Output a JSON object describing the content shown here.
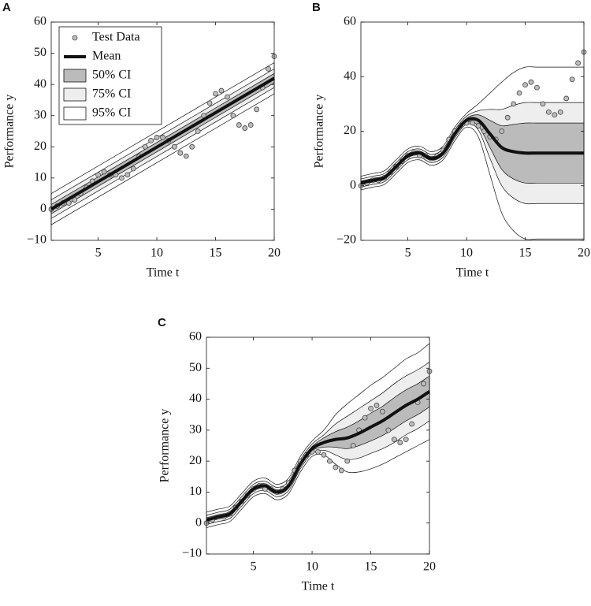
{
  "chart_data": [
    {
      "type": "line",
      "panel": "A",
      "xlabel": "Time t",
      "ylabel": "Performance y",
      "xlim": [
        1,
        20
      ],
      "ylim": [
        -10,
        60
      ],
      "xticks": [
        5,
        10,
        15,
        20
      ],
      "yticks": [
        {
          "value": -10,
          "label": "−10"
        },
        0,
        10,
        20,
        30,
        40,
        50,
        60
      ],
      "legend": "upper left",
      "scatter": {
        "name": "Test Data",
        "color": "#bdbdbd",
        "x": [
          1,
          1.5,
          2,
          2.5,
          3,
          3.5,
          4,
          4.5,
          5,
          5.5,
          6,
          6.5,
          7,
          7.5,
          8,
          8.5,
          9,
          9.5,
          10,
          10.5,
          11,
          11.5,
          12,
          12.5,
          13,
          13.5,
          14,
          14.5,
          15,
          15.5,
          16,
          16.5,
          17,
          17.5,
          18,
          18.5,
          19,
          19.5,
          20
        ],
        "values": [
          0,
          1,
          2,
          2,
          3,
          5,
          7,
          9,
          11,
          12,
          11,
          11,
          10,
          11,
          13,
          17,
          20,
          22,
          23,
          23,
          22,
          20,
          18,
          17,
          20,
          25,
          30,
          34,
          37,
          38,
          36,
          30,
          27,
          26,
          27,
          32,
          39,
          45,
          49
        ]
      },
      "mean": {
        "name": "Mean",
        "color": "#111111",
        "x": [
          1,
          20
        ],
        "values": [
          0,
          42
        ]
      },
      "bands": [
        {
          "name": "50% CI",
          "color": "#bbbbbb",
          "x": [
            1,
            20
          ],
          "lower": [
            -1.5,
            40.5
          ],
          "upper": [
            1.5,
            43.5
          ]
        },
        {
          "name": "75% CI",
          "color": "#eeeeee",
          "x": [
            1,
            20
          ],
          "lower": [
            -3,
            39
          ],
          "upper": [
            3,
            45
          ]
        },
        {
          "name": "95% CI",
          "color": "#ffffff",
          "x": [
            1,
            20
          ],
          "lower": [
            -5,
            37
          ],
          "upper": [
            5,
            47
          ]
        }
      ]
    },
    {
      "type": "line",
      "panel": "B",
      "xlabel": "Time t",
      "ylabel": "Performance y",
      "xlim": [
        1,
        20
      ],
      "ylim": [
        -20,
        60
      ],
      "xticks": [
        5,
        10,
        15,
        20
      ],
      "yticks": [
        {
          "value": -20,
          "label": "−20"
        },
        0,
        20,
        40,
        60
      ],
      "scatter": {
        "color": "#bdbdbd",
        "x": [
          1,
          1.5,
          2,
          2.5,
          3,
          3.5,
          4,
          4.5,
          5,
          5.5,
          6,
          6.5,
          7,
          7.5,
          8,
          8.5,
          9,
          9.5,
          10,
          10.5,
          11,
          11.5,
          12,
          12.5,
          13,
          13.5,
          14,
          14.5,
          15,
          15.5,
          16,
          16.5,
          17,
          17.5,
          18,
          18.5,
          19,
          19.5,
          20
        ],
        "values": [
          0,
          1,
          2,
          2,
          3,
          5,
          7,
          9,
          11,
          12,
          11,
          11,
          10,
          11,
          13,
          17,
          20,
          22,
          23,
          23,
          22,
          20,
          18,
          17,
          20,
          25,
          30,
          34,
          37,
          38,
          36,
          30,
          27,
          26,
          27,
          32,
          39,
          45,
          49
        ]
      },
      "mean": {
        "color": "#111111",
        "x": [
          1,
          2,
          3,
          4,
          5,
          6,
          7,
          8,
          9,
          10,
          11,
          12,
          13,
          14,
          15,
          16,
          17,
          18,
          19,
          20
        ],
        "values": [
          1,
          2,
          3,
          7,
          11,
          12,
          10,
          12,
          19,
          24,
          24,
          19,
          14,
          12.5,
          12,
          12,
          12,
          12,
          12,
          12
        ]
      },
      "bands": [
        {
          "color": "#bbbbbb",
          "x": [
            1,
            2,
            3,
            4,
            5,
            6,
            7,
            8,
            9,
            10,
            11,
            12,
            13,
            14,
            15,
            16,
            17,
            18,
            19,
            20
          ],
          "lower": [
            0.3,
            1.3,
            2.3,
            6.3,
            10.3,
            11.3,
            9.3,
            11.3,
            18.3,
            23.3,
            22,
            14,
            6,
            2.5,
            1,
            1,
            1,
            1,
            1,
            1
          ],
          "upper": [
            1.7,
            2.7,
            3.7,
            7.7,
            11.7,
            12.7,
            10.7,
            12.7,
            19.7,
            24.7,
            26,
            24,
            22,
            22.5,
            23,
            23,
            23,
            23,
            23,
            23
          ]
        },
        {
          "color": "#eeeeee",
          "x": [
            1,
            2,
            3,
            4,
            5,
            6,
            7,
            8,
            9,
            10,
            11,
            12,
            13,
            14,
            15,
            16,
            17,
            18,
            19,
            20
          ],
          "lower": [
            -0.5,
            0.5,
            1.5,
            5.5,
            9.5,
            10.5,
            8.5,
            10.5,
            17.5,
            22.5,
            20.5,
            10,
            0,
            -4.5,
            -6.5,
            -6.5,
            -6.5,
            -6.5,
            -6.5,
            -6.5
          ],
          "upper": [
            2.5,
            3.5,
            4.5,
            8.5,
            12.5,
            13.5,
            11.5,
            13.5,
            20.5,
            25.5,
            27.5,
            28,
            28,
            29.5,
            30.5,
            30.5,
            30.5,
            30.5,
            30.5,
            30.5
          ]
        },
        {
          "color": "#ffffff",
          "x": [
            1,
            2,
            3,
            4,
            5,
            6,
            7,
            8,
            9,
            10,
            11,
            12,
            13,
            14,
            15,
            16,
            17,
            18,
            19,
            20
          ],
          "lower": [
            -1.5,
            -0.5,
            0.5,
            4.5,
            8.5,
            9.5,
            7.5,
            9.5,
            16.5,
            21.5,
            18,
            4,
            -10,
            -16.5,
            -19.5,
            -19.5,
            -19.5,
            -19.5,
            -19.5,
            -19.5
          ],
          "upper": [
            3.5,
            4.5,
            5.5,
            9.5,
            13.5,
            14.5,
            12.5,
            14.5,
            21.5,
            26.5,
            30,
            34,
            38,
            41.5,
            43.5,
            43.5,
            43.5,
            43.5,
            43.5,
            43.5
          ]
        }
      ]
    },
    {
      "type": "line",
      "panel": "C",
      "xlabel": "Time t",
      "ylabel": "Performance y",
      "xlim": [
        1,
        20
      ],
      "ylim": [
        -10,
        60
      ],
      "xticks": [
        5,
        10,
        15,
        20
      ],
      "yticks": [
        {
          "value": -10,
          "label": "−10"
        },
        0,
        10,
        20,
        30,
        40,
        50,
        60
      ],
      "scatter": {
        "color": "#bdbdbd",
        "x": [
          1,
          1.5,
          2,
          2.5,
          3,
          3.5,
          4,
          4.5,
          5,
          5.5,
          6,
          6.5,
          7,
          7.5,
          8,
          8.5,
          9,
          9.5,
          10,
          10.5,
          11,
          11.5,
          12,
          12.5,
          13,
          13.5,
          14,
          14.5,
          15,
          15.5,
          16,
          16.5,
          17,
          17.5,
          18,
          18.5,
          19,
          19.5,
          20
        ],
        "values": [
          0,
          1,
          2,
          2,
          3,
          5,
          7,
          9,
          11,
          12,
          11,
          11,
          10,
          11,
          13,
          17,
          20,
          22,
          23,
          23,
          22,
          20,
          18,
          17,
          20,
          25,
          30,
          34,
          37,
          38,
          36,
          30,
          27,
          26,
          27,
          32,
          39,
          45,
          49
        ]
      },
      "mean": {
        "color": "#111111",
        "x": [
          1,
          2,
          3,
          4,
          5,
          6,
          7,
          8,
          9,
          10,
          11,
          12,
          13,
          14,
          15,
          16,
          17,
          18,
          19,
          20
        ],
        "values": [
          1,
          2,
          3,
          7,
          11,
          12,
          10,
          12,
          19,
          24,
          26,
          27,
          27.5,
          29,
          31,
          33,
          35.5,
          38,
          40,
          42.5
        ]
      },
      "bands": [
        {
          "color": "#bbbbbb",
          "x": [
            1,
            2,
            3,
            4,
            5,
            6,
            7,
            8,
            9,
            10,
            11,
            12,
            13,
            14,
            15,
            16,
            17,
            18,
            19,
            20
          ],
          "lower": [
            0.3,
            1.3,
            2.3,
            6.3,
            10.3,
            11.3,
            9.3,
            11.3,
            18.3,
            23.3,
            24.5,
            24.5,
            24,
            25,
            26.5,
            28.3,
            30.5,
            33,
            35,
            37.5
          ],
          "upper": [
            1.7,
            2.7,
            3.7,
            7.7,
            11.7,
            12.7,
            10.7,
            12.7,
            19.7,
            24.7,
            27.5,
            29.5,
            31,
            33,
            35.5,
            37.7,
            40.5,
            43,
            45,
            47.5
          ]
        },
        {
          "color": "#eeeeee",
          "x": [
            1,
            2,
            3,
            4,
            5,
            6,
            7,
            8,
            9,
            10,
            11,
            12,
            13,
            14,
            15,
            16,
            17,
            18,
            19,
            20
          ],
          "lower": [
            -0.5,
            0.5,
            1.5,
            5.5,
            9.5,
            10.5,
            8.5,
            10.5,
            17.5,
            22.5,
            23.5,
            22,
            20.5,
            21,
            22.5,
            24,
            26,
            28.5,
            30.5,
            33
          ],
          "upper": [
            2.5,
            3.5,
            4.5,
            8.5,
            12.5,
            13.5,
            11.5,
            13.5,
            20.5,
            25.5,
            28.5,
            32,
            34.5,
            37,
            39.5,
            42,
            45,
            47.5,
            49.5,
            52
          ]
        },
        {
          "color": "#ffffff",
          "x": [
            1,
            2,
            3,
            4,
            5,
            6,
            7,
            8,
            9,
            10,
            11,
            12,
            13,
            14,
            15,
            16,
            17,
            18,
            19,
            20
          ],
          "lower": [
            -1.5,
            -0.5,
            0.5,
            4.5,
            8.5,
            9.5,
            7.5,
            9.5,
            16.5,
            21.5,
            22,
            19,
            16.5,
            16.5,
            17.5,
            19,
            21,
            23,
            25,
            27
          ],
          "upper": [
            3.5,
            4.5,
            5.5,
            9.5,
            13.5,
            14.5,
            12.5,
            14.5,
            21.5,
            26.5,
            30,
            35,
            38.5,
            41.5,
            44.5,
            47,
            50,
            53,
            55,
            58
          ]
        }
      ]
    }
  ]
}
